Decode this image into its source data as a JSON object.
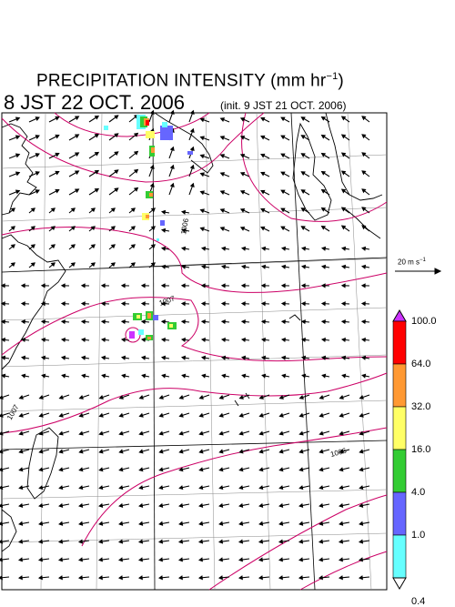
{
  "title": {
    "main": "PRECIPITATION INTENSITY (mm hr",
    "unit_exp": "−1",
    "unit_close": ")"
  },
  "valid_time": "8 JST 22 OCT. 2006",
  "init_time": "(init. 9 JST 21 OCT. 2006)",
  "wind_scale": {
    "label": "20 m s",
    "exp": "−1"
  },
  "isobar_labels": [
    "1006",
    "1007",
    "1007",
    "1006"
  ],
  "legend": {
    "levels": [
      "100.0",
      "64.0",
      "32.0",
      "16.0",
      "4.0",
      "1.0",
      "0.4"
    ],
    "colors": [
      "#ff0000",
      "#ff9933",
      "#ffff66",
      "#33cc33",
      "#6666ff",
      "#66ffff"
    ],
    "over_color": "#cc33ff",
    "under_color": "#ffffff"
  },
  "colors": {
    "isobar": "#cc0066",
    "coast": "#000000",
    "grid": "#888888"
  }
}
